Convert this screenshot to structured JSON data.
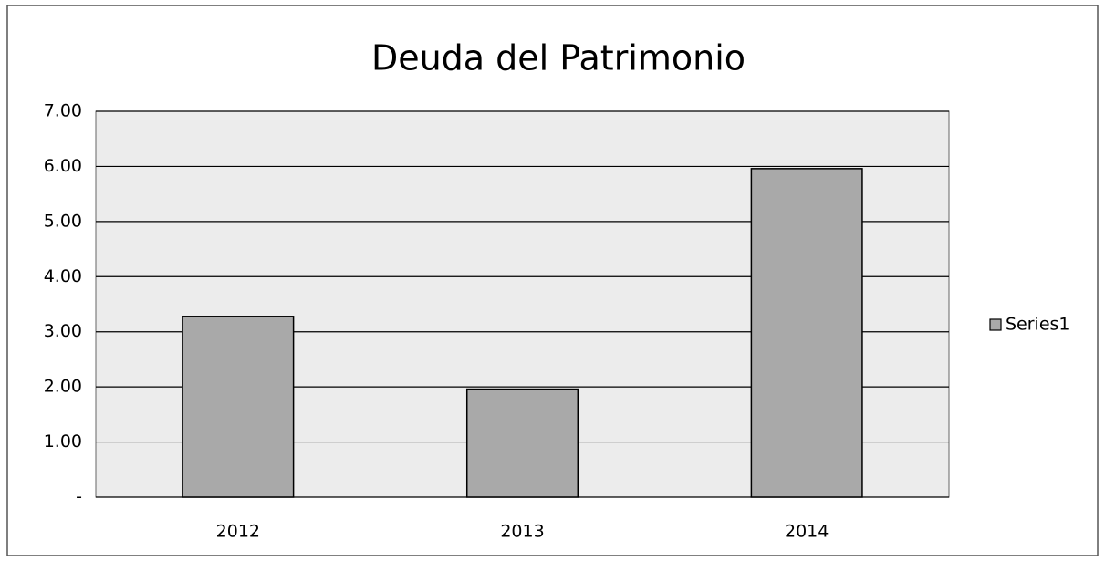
{
  "chart_data": {
    "type": "bar",
    "title": "Deuda del Patrimonio",
    "categories": [
      "2012",
      "2013",
      "2014"
    ],
    "values": [
      3.28,
      1.96,
      5.96
    ],
    "color": "#a9a9a9",
    "ylim": [
      0,
      7
    ],
    "yticks": [
      {
        "value": 0,
        "label": "-"
      },
      {
        "value": 1,
        "label": "1.00"
      },
      {
        "value": 2,
        "label": "2.00"
      },
      {
        "value": 3,
        "label": "3.00"
      },
      {
        "value": 4,
        "label": "4.00"
      },
      {
        "value": 5,
        "label": "5.00"
      },
      {
        "value": 6,
        "label": "6.00"
      },
      {
        "value": 7,
        "label": "7.00"
      }
    ],
    "grid": true,
    "legend": {
      "position": "right",
      "entries": [
        "Series1"
      ]
    }
  }
}
